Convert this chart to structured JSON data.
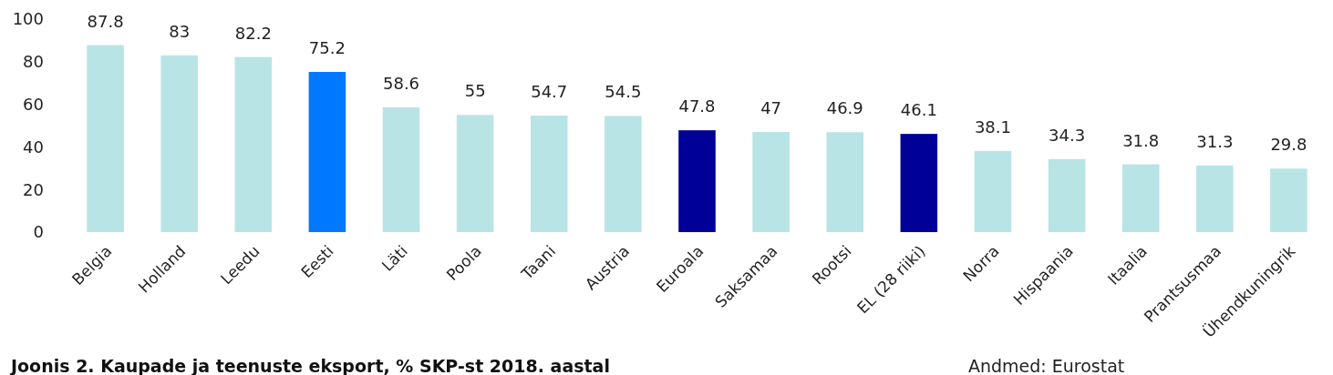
{
  "chart_data": {
    "type": "bar",
    "title": "Joonis 2. Kaupade ja teenuste eksport, % SKP-st 2018. aastal",
    "annotations": [
      "Andmed: Eurostat"
    ],
    "categories": [
      "Belgia",
      "Holland",
      "Leedu",
      "Eesti",
      "Läti",
      "Poola",
      "Taani",
      "Austria",
      "Euroala",
      "Saksamaa",
      "Rootsi",
      "EL (28 riiki)",
      "Norra",
      "Hispaania",
      "Itaalia",
      "Prantsusmaa",
      "Ühendkuningrik"
    ],
    "values": [
      87.8,
      83,
      82.2,
      75.2,
      58.6,
      55,
      54.7,
      54.5,
      47.8,
      47,
      46.9,
      46.1,
      38.1,
      34.3,
      31.8,
      31.3,
      29.8
    ],
    "colors": [
      "#b9e4e6",
      "#b9e4e6",
      "#b9e4e6",
      "#0078ff",
      "#b9e4e6",
      "#b9e4e6",
      "#b9e4e6",
      "#b9e4e6",
      "#000099",
      "#b9e4e6",
      "#b9e4e6",
      "#000099",
      "#b9e4e6",
      "#b9e4e6",
      "#b9e4e6",
      "#b9e4e6",
      "#b9e4e6"
    ],
    "ylim": [
      0,
      100
    ],
    "yticks": [
      0,
      20,
      40,
      60,
      80,
      100
    ],
    "data_labels": true,
    "grid": false
  }
}
